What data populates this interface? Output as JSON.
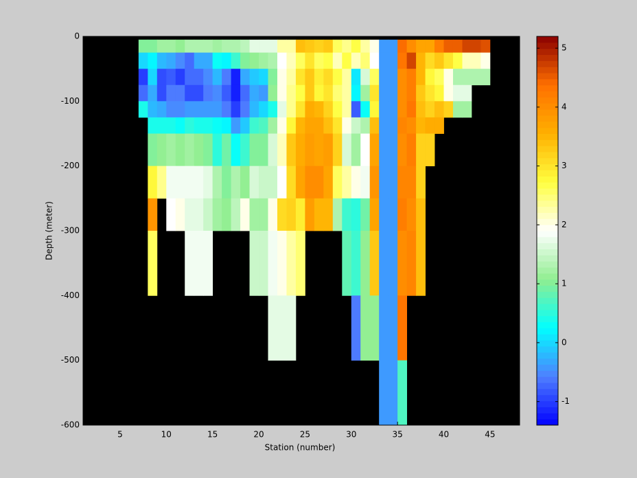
{
  "chart_data": {
    "type": "heatmap",
    "xlabel": "Station (number)",
    "ylabel": "Depth (meter)",
    "x": [
      7,
      8,
      9,
      10,
      11,
      12,
      13,
      14,
      15,
      16,
      17,
      18,
      19,
      20,
      21,
      22,
      23,
      24,
      25,
      26,
      27,
      28,
      29,
      30,
      31,
      32,
      33,
      34,
      35,
      36,
      37,
      38,
      39,
      40,
      41,
      42,
      43,
      44
    ],
    "y_edges": [
      -5,
      -25,
      -50,
      -75,
      -100,
      -125,
      -150,
      -200,
      -250,
      -300,
      -400,
      -500,
      -600
    ],
    "z": [
      [
        1.0,
        1.0,
        1.2,
        1.2,
        1.1,
        1.3,
        1.3,
        1.3,
        1.2,
        1.3,
        1.3,
        1.4,
        1.7,
        1.7,
        1.7,
        2.3,
        2.3,
        3.4,
        3.3,
        3.2,
        3.3,
        2.6,
        2.4,
        2.7,
        2.3,
        2.0,
        -0.4,
        -0.4,
        4.4,
        4.0,
        3.7,
        3.7,
        4.2,
        4.5,
        4.5,
        4.7,
        4.7,
        4.6
      ],
      [
        0.0,
        0.2,
        -0.2,
        -0.3,
        -0.5,
        -0.7,
        -0.3,
        -0.3,
        0.3,
        0.2,
        0.6,
        1.0,
        1.1,
        1.2,
        1.3,
        1.9,
        2.2,
        2.6,
        3.0,
        2.6,
        2.7,
        2.2,
        2.7,
        2.2,
        2.5,
        1.9,
        -0.4,
        -0.4,
        4.3,
        4.7,
        3.5,
        3.1,
        3.3,
        3.0,
        2.7,
        2.2,
        2.2,
        2.0
      ],
      [
        -1.0,
        0.0,
        -0.9,
        -0.8,
        -1.0,
        -0.7,
        -0.7,
        -0.5,
        -0.2,
        -0.6,
        -1.2,
        -0.3,
        -0.1,
        0.0,
        1.0,
        2.0,
        2.3,
        3.0,
        3.3,
        2.9,
        3.1,
        2.7,
        2.3,
        0.1,
        1.6,
        2.6,
        -0.4,
        -0.4,
        4.0,
        4.2,
        3.5,
        2.8,
        2.6,
        2.0,
        1.3,
        1.3,
        1.3,
        1.3
      ],
      [
        -0.7,
        -0.3,
        -0.9,
        -0.6,
        -0.6,
        -0.9,
        -0.9,
        -0.6,
        -0.5,
        -0.8,
        -1.2,
        -0.7,
        -0.3,
        -0.4,
        1.1,
        2.0,
        2.4,
        2.7,
        3.3,
        2.8,
        3.0,
        2.5,
        2.3,
        0.2,
        1.2,
        3.0,
        -0.4,
        -0.4,
        4.0,
        4.2,
        3.3,
        3.0,
        2.8,
        2.0,
        1.7,
        1.7,
        null,
        null
      ],
      [
        0.4,
        -0.2,
        -0.3,
        -0.5,
        -0.5,
        -0.4,
        -0.4,
        -0.4,
        -0.4,
        -0.6,
        -1.0,
        -0.6,
        -0.2,
        0.0,
        0.4,
        1.7,
        2.4,
        3.0,
        3.6,
        3.5,
        3.2,
        2.7,
        2.3,
        -0.8,
        0.3,
        2.8,
        -0.4,
        -0.4,
        4.0,
        4.3,
        3.4,
        3.2,
        3.4,
        3.2,
        1.2,
        1.2,
        null,
        null
      ],
      [
        null,
        0.4,
        0.4,
        0.4,
        0.3,
        0.5,
        0.4,
        0.4,
        0.3,
        0.2,
        -0.4,
        -0.1,
        0.6,
        0.7,
        1.2,
        2.0,
        2.8,
        3.5,
        3.7,
        3.7,
        3.4,
        3.0,
        2.0,
        1.5,
        1.3,
        3.4,
        -0.4,
        -0.4,
        4.1,
        4.0,
        3.5,
        3.6,
        3.6,
        null,
        null,
        null,
        null,
        null
      ],
      [
        null,
        1.0,
        1.1,
        1.2,
        1.1,
        1.2,
        1.1,
        1.0,
        0.5,
        0.9,
        0.3,
        0.6,
        1.0,
        1.0,
        1.6,
        2.2,
        3.3,
        3.6,
        3.8,
        3.7,
        3.8,
        3.2,
        1.6,
        1.2,
        1.9,
        3.7,
        -0.4,
        -0.4,
        4.0,
        4.2,
        3.2,
        3.2,
        null,
        null,
        null,
        null,
        null,
        null
      ],
      [
        null,
        2.8,
        2.4,
        1.8,
        1.8,
        1.8,
        1.8,
        1.7,
        1.3,
        1.0,
        1.3,
        1.1,
        1.6,
        1.5,
        1.5,
        1.9,
        3.1,
        3.7,
        4.0,
        4.0,
        3.7,
        2.6,
        2.3,
        2.0,
        1.8,
        3.9,
        -0.4,
        -0.4,
        4.1,
        4.1,
        3.2,
        null,
        null,
        null,
        null,
        null,
        null,
        null
      ],
      [
        null,
        3.9,
        null,
        1.9,
        2.0,
        1.7,
        1.7,
        1.5,
        1.2,
        1.1,
        1.4,
        2.0,
        1.2,
        1.2,
        2.0,
        3.1,
        3.2,
        2.9,
        3.8,
        3.5,
        3.5,
        1.3,
        0.6,
        0.5,
        0.9,
        3.7,
        -0.4,
        -0.4,
        4.2,
        4.0,
        3.4,
        null,
        null,
        null,
        null,
        null,
        null,
        null
      ],
      [
        null,
        2.6,
        null,
        null,
        null,
        1.8,
        1.8,
        1.8,
        null,
        null,
        null,
        null,
        1.5,
        1.5,
        1.8,
        2.0,
        2.3,
        2.5,
        null,
        null,
        null,
        null,
        0.8,
        0.6,
        1.1,
        3.3,
        -0.4,
        -0.4,
        4.0,
        4.1,
        3.4,
        null,
        null,
        null,
        null,
        null,
        null,
        null
      ],
      [
        null,
        null,
        null,
        null,
        null,
        null,
        null,
        null,
        null,
        null,
        null,
        null,
        null,
        null,
        1.7,
        1.7,
        1.7,
        null,
        null,
        null,
        null,
        null,
        null,
        -0.6,
        1.1,
        1.1,
        -0.4,
        -0.4,
        4.3,
        null,
        null,
        null,
        null,
        null,
        null,
        null,
        null,
        null
      ],
      [
        null,
        null,
        null,
        null,
        null,
        null,
        null,
        null,
        null,
        null,
        null,
        null,
        null,
        null,
        null,
        null,
        null,
        null,
        null,
        null,
        null,
        null,
        null,
        null,
        null,
        null,
        -0.4,
        -0.4,
        0.7,
        null,
        null,
        null,
        null,
        null,
        null,
        null,
        null,
        null
      ]
    ],
    "xlim": [
      1,
      48.2
    ],
    "ylim": [
      -600,
      0
    ],
    "xticks": [
      5,
      10,
      15,
      20,
      25,
      30,
      35,
      40,
      45
    ],
    "yticks": [
      -600,
      -500,
      -400,
      -300,
      -200,
      -100,
      0
    ],
    "clim": [
      -1.4,
      5.2
    ],
    "cticks": [
      -1,
      0,
      1,
      2,
      3,
      4,
      5
    ],
    "colormap": [
      "#0000ff",
      "#4f7fff",
      "#00ffff",
      "#90ee90",
      "#ffffff",
      "#ffff40",
      "#ffb000",
      "#ff7000",
      "#8b0000"
    ],
    "background": "#000000"
  }
}
